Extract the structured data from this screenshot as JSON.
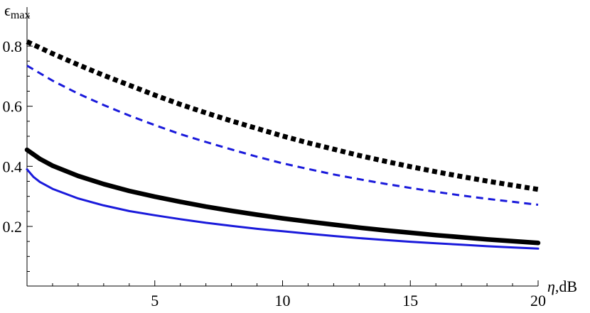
{
  "chart_data": {
    "type": "line",
    "title": "",
    "xlabel_symbol": "η",
    "xlabel_unit": ",dB",
    "ylabel_symbol": "ϵ",
    "ylabel_sub": "max",
    "xlim": [
      0,
      20
    ],
    "ylim": [
      0,
      0.85
    ],
    "xticks_major": [
      5,
      10,
      15,
      20
    ],
    "xtick_labels": [
      "5",
      "10",
      "15",
      "20"
    ],
    "yticks_major": [
      0.2,
      0.4,
      0.6,
      0.8
    ],
    "ytick_labels": [
      "0.2",
      "0.4",
      "0.6",
      "0.8"
    ],
    "grid": false,
    "legend": "none",
    "series": [
      {
        "color": "#000000",
        "style": "dotted-thick",
        "x": [
          0,
          1,
          2,
          3,
          4,
          5,
          6,
          7,
          8,
          9,
          10,
          11,
          12,
          13,
          14,
          15,
          16,
          17,
          18,
          19,
          20
        ],
        "y": [
          0.815,
          0.775,
          0.738,
          0.703,
          0.67,
          0.637,
          0.606,
          0.578,
          0.551,
          0.526,
          0.501,
          0.478,
          0.457,
          0.436,
          0.417,
          0.399,
          0.382,
          0.366,
          0.351,
          0.337,
          0.323
        ]
      },
      {
        "color": "#1a1adb",
        "style": "dashed",
        "x": [
          0,
          1,
          2,
          3,
          4,
          5,
          6,
          7,
          8,
          9,
          10,
          11,
          12,
          13,
          14,
          15,
          16,
          17,
          18,
          19,
          20
        ],
        "y": [
          0.735,
          0.685,
          0.642,
          0.604,
          0.569,
          0.537,
          0.507,
          0.481,
          0.456,
          0.432,
          0.41,
          0.391,
          0.373,
          0.357,
          0.342,
          0.328,
          0.315,
          0.303,
          0.292,
          0.282,
          0.272
        ]
      },
      {
        "color": "#000000",
        "style": "solid-thick",
        "x": [
          0,
          0.5,
          1,
          2,
          3,
          4,
          5,
          6,
          7,
          8,
          9,
          10,
          11,
          12,
          13,
          14,
          15,
          16,
          17,
          18,
          19,
          20
        ],
        "y": [
          0.455,
          0.425,
          0.402,
          0.368,
          0.341,
          0.318,
          0.299,
          0.282,
          0.266,
          0.252,
          0.239,
          0.227,
          0.216,
          0.206,
          0.196,
          0.187,
          0.179,
          0.171,
          0.164,
          0.157,
          0.151,
          0.145
        ]
      },
      {
        "color": "#1a1adb",
        "style": "solid",
        "x": [
          0,
          0.25,
          0.5,
          1,
          2,
          3,
          4,
          5,
          6,
          7,
          8,
          9,
          10,
          11,
          12,
          13,
          14,
          15,
          16,
          17,
          18,
          19,
          20
        ],
        "y": [
          0.39,
          0.365,
          0.348,
          0.325,
          0.293,
          0.27,
          0.251,
          0.237,
          0.224,
          0.212,
          0.202,
          0.192,
          0.184,
          0.176,
          0.168,
          0.161,
          0.155,
          0.149,
          0.144,
          0.139,
          0.134,
          0.13,
          0.126
        ]
      }
    ]
  }
}
